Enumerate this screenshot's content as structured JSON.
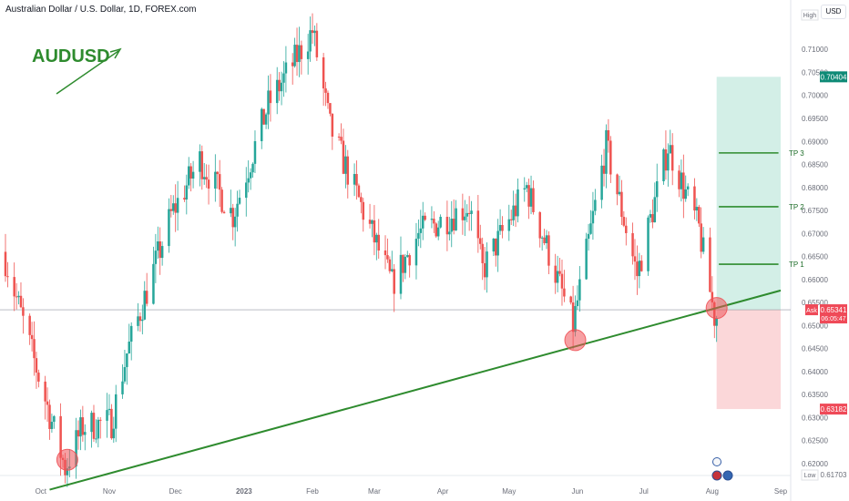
{
  "header": {
    "symbol_title": "Australian Dollar / U.S. Dollar, 1D, FOREX.com"
  },
  "currency_button": "USD",
  "labels": {
    "high": "High",
    "low": "Low",
    "ask": "Ask"
  },
  "chart_data": {
    "type": "candlestick",
    "instrument": "AUDUSD",
    "annotation": "AUDUSD",
    "y_ticks": [
      "0.71000",
      "0.70500",
      "0.70000",
      "0.69500",
      "0.69000",
      "0.68500",
      "0.68000",
      "0.67500",
      "0.67000",
      "0.66500",
      "0.66000",
      "0.65500",
      "0.65000",
      "0.64500",
      "0.64000",
      "0.63500",
      "0.63000",
      "0.62500",
      "0.62000"
    ],
    "x_ticks": [
      "Oct",
      "Nov",
      "Dec",
      "2023",
      "Feb",
      "Mar",
      "Apr",
      "May",
      "Jun",
      "Jul",
      "Aug",
      "Sep"
    ],
    "price_badges": {
      "take_profit": "0.70404",
      "current_price": "0.65341",
      "countdown": "06:05:47",
      "stop_loss": "0.63182",
      "low": "0.61703"
    },
    "target_labels": [
      {
        "label": "TP 3",
        "price": 0.6875
      },
      {
        "label": "TP 2",
        "price": 0.6758
      },
      {
        "label": "TP 1",
        "price": 0.6633
      }
    ],
    "trendline": {
      "start": [
        "2022-10-05",
        0.6143
      ],
      "end": [
        "2023-09-01",
        0.6576
      ]
    },
    "touch_points": [
      {
        "date": "2022-10-13",
        "price": 0.6208
      },
      {
        "date": "2023-05-31",
        "price": 0.6468
      },
      {
        "date": "2023-08-03",
        "price": 0.6538
      }
    ],
    "position": {
      "entry": 0.65341,
      "take_profit": 0.70404,
      "stop_loss": 0.63182
    },
    "ylim": [
      0.6158,
      0.7148
    ],
    "colors": {
      "up": "#26a69a",
      "down": "#ef5350",
      "trend": "#2e8b2e",
      "annotation": "#2e8b2e",
      "profit_zone": "#d3efe7",
      "loss_zone": "#fbd7d9"
    }
  }
}
